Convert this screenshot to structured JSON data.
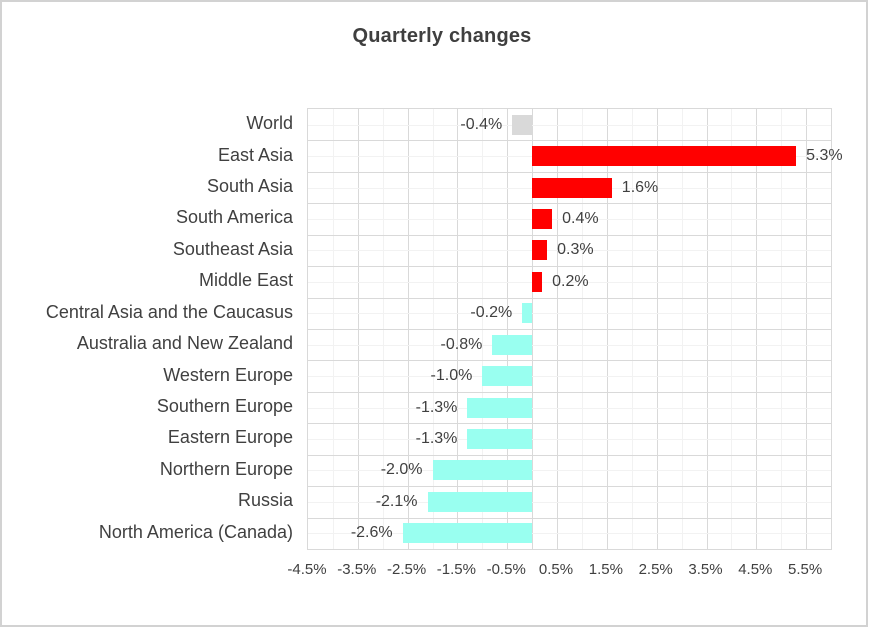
{
  "chart_data": {
    "type": "bar",
    "orientation": "horizontal",
    "title": "Quarterly changes",
    "xlabel": "",
    "ylabel": "",
    "legend": "none",
    "grid": "major-and-minor",
    "xlim": [
      -4.5,
      6.0
    ],
    "x_minor_step": 0.5,
    "x_major_step": 1.0,
    "categories": [
      "World",
      "East Asia",
      "South Asia",
      "South America",
      "Southeast Asia",
      "Middle East",
      "Central Asia and the Caucasus",
      "Australia and New Zealand",
      "Western Europe",
      "Southern Europe",
      "Eastern Europe",
      "Northern Europe",
      "Russia",
      "North America (Canada)"
    ],
    "values": [
      -0.4,
      5.3,
      1.6,
      0.4,
      0.3,
      0.2,
      -0.2,
      -0.8,
      -1.0,
      -1.3,
      -1.3,
      -2.0,
      -2.1,
      -2.6
    ],
    "items": [
      {
        "category": "World",
        "value": -0.4,
        "display": "-0.4%",
        "color": "#d9d9d9"
      },
      {
        "category": "East Asia",
        "value": 5.3,
        "display": "5.3%",
        "color": "#ff0000"
      },
      {
        "category": "South Asia",
        "value": 1.6,
        "display": "1.6%",
        "color": "#ff0000"
      },
      {
        "category": "South America",
        "value": 0.4,
        "display": "0.4%",
        "color": "#ff0000"
      },
      {
        "category": "Southeast Asia",
        "value": 0.3,
        "display": "0.3%",
        "color": "#ff0000"
      },
      {
        "category": "Middle East",
        "value": 0.2,
        "display": "0.2%",
        "color": "#ff0000"
      },
      {
        "category": "Central Asia and the Caucasus",
        "value": -0.2,
        "display": "-0.2%",
        "color": "#99fff0"
      },
      {
        "category": "Australia and New Zealand",
        "value": -0.8,
        "display": "-0.8%",
        "color": "#99fff0"
      },
      {
        "category": "Western Europe",
        "value": -1.0,
        "display": "-1.0%",
        "color": "#99fff0"
      },
      {
        "category": "Southern Europe",
        "value": -1.3,
        "display": "-1.3%",
        "color": "#99fff0"
      },
      {
        "category": "Eastern Europe",
        "value": -1.3,
        "display": "-1.3%",
        "color": "#99fff0"
      },
      {
        "category": "Northern Europe",
        "value": -2.0,
        "display": "-2.0%",
        "color": "#99fff0"
      },
      {
        "category": "Russia",
        "value": -2.1,
        "display": "-2.1%",
        "color": "#99fff0"
      },
      {
        "category": "North America (Canada)",
        "value": -2.6,
        "display": "-2.6%",
        "color": "#99fff0"
      }
    ],
    "xticks": {
      "values": [
        -4.5,
        -3.5,
        -2.5,
        -1.5,
        -0.5,
        0.5,
        1.5,
        2.5,
        3.5,
        4.5,
        5.5
      ],
      "labels": [
        "-4.5%",
        "-3.5%",
        "-2.5%",
        "-1.5%",
        "-0.5%",
        "0.5%",
        "1.5%",
        "2.5%",
        "3.5%",
        "4.5%",
        "5.5%"
      ]
    },
    "colors": {
      "positive": "#ff0000",
      "negative": "#99fff0",
      "neutral": "#d9d9d9",
      "grid_major": "#d9d9d9",
      "grid_minor": "#f2f2f2",
      "text": "#404040",
      "frame_border": "#d2d2d2"
    }
  }
}
